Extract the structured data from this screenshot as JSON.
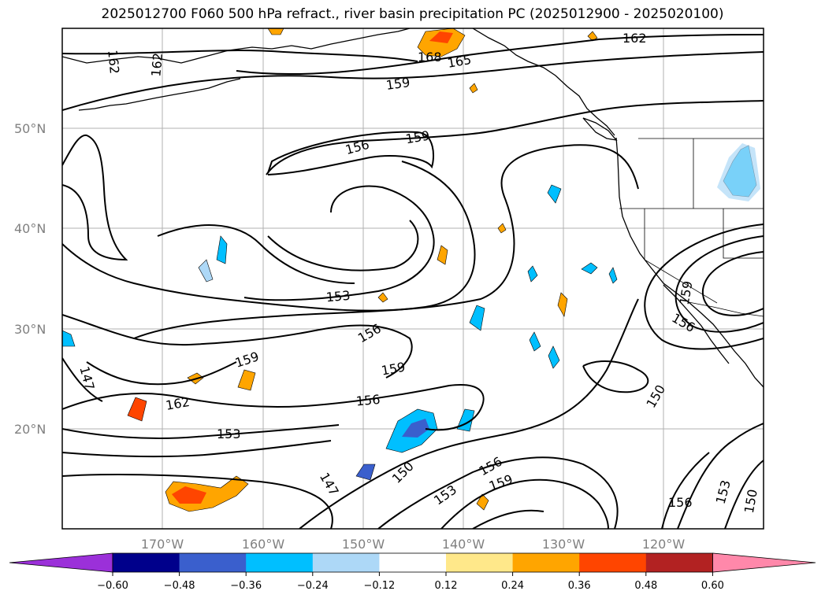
{
  "title": "2025012700 F060 500 hPa refract., river basin precipitation PC (2025012900 - 2025020100)",
  "lat_labels": [
    "50°N",
    "40°N",
    "30°N",
    "20°N"
  ],
  "lon_labels": [
    "170°W",
    "160°W",
    "150°W",
    "140°W",
    "130°W",
    "120°W"
  ],
  "contour_labels": [
    "162",
    "162",
    "168",
    "165",
    "162",
    "159",
    "156",
    "159",
    "153",
    "156",
    "159",
    "156",
    "159",
    "162",
    "153",
    "147",
    "150",
    "153",
    "156",
    "159",
    "147",
    "150",
    "159",
    "156",
    "156",
    "153",
    "150"
  ],
  "colorbar": {
    "ticks": [
      "−0.60",
      "−0.48",
      "−0.36",
      "−0.24",
      "−0.12",
      "0.12",
      "0.24",
      "0.36",
      "0.48",
      "0.60"
    ],
    "colors": [
      "#9b30d9",
      "#00008b",
      "#3a5fcd",
      "#00bfff",
      "#add8f7",
      "#ffffff",
      "#ffe88a",
      "#ffa500",
      "#ff4500",
      "#b22222",
      "#ff88aa"
    ]
  }
}
